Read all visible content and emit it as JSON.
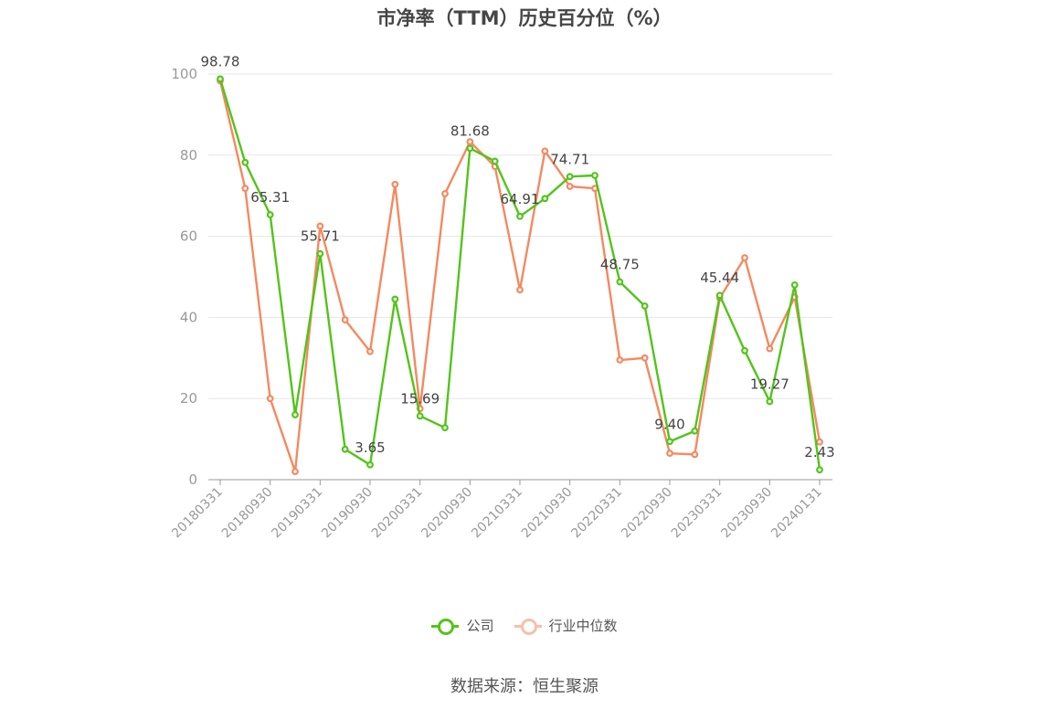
{
  "chart_data": {
    "type": "line",
    "title": "市净率（TTM）历史百分位（%）",
    "x": [
      "20180331",
      "20180630",
      "20180930",
      "20181231",
      "20190331",
      "20190630",
      "20190930",
      "20191231",
      "20200331",
      "20200630",
      "20200930",
      "20201231",
      "20210331",
      "20210630",
      "20210930",
      "20211231",
      "20220331",
      "20220630",
      "20220930",
      "20221231",
      "20230331",
      "20230630",
      "20230930",
      "20231231",
      "20240131"
    ],
    "x_tick_labels": [
      "20180331",
      "20180930",
      "20190331",
      "20190930",
      "20200331",
      "20200930",
      "20210331",
      "20210930",
      "20220331",
      "20220930",
      "20230331",
      "20230930",
      "20240131"
    ],
    "y_ticks": [
      "0",
      "20",
      "40",
      "60",
      "80",
      "100"
    ],
    "ylim": [
      0,
      100
    ],
    "grid": true,
    "legend_position": "bottom-center",
    "series": [
      {
        "name": "公司",
        "color": "#52c41a",
        "values": [
          98.78,
          78.2,
          65.31,
          16.0,
          55.71,
          7.5,
          3.65,
          44.5,
          15.69,
          12.8,
          81.68,
          78.5,
          64.91,
          69.3,
          74.71,
          75.0,
          48.75,
          42.8,
          9.4,
          12.0,
          45.44,
          31.8,
          19.27,
          48.0,
          2.43
        ],
        "labels": [
          "98.78",
          "",
          "65.31",
          "",
          "55.71",
          "",
          "3.65",
          "",
          "15.69",
          "",
          "81.68",
          "",
          "64.91",
          "",
          "74.71",
          "",
          "48.75",
          "",
          "9.40",
          "",
          "45.44",
          "",
          "19.27",
          "",
          "2.43"
        ]
      },
      {
        "name": "行业中位数",
        "color": "#f4895f",
        "values": [
          98.3,
          71.8,
          20.0,
          2.0,
          62.5,
          39.4,
          31.6,
          72.8,
          17.5,
          70.5,
          83.3,
          77.2,
          46.8,
          81.0,
          72.3,
          71.8,
          29.5,
          30.0,
          6.5,
          6.2,
          44.8,
          54.7,
          32.3,
          45.0,
          9.3
        ]
      }
    ]
  },
  "source_text": "数据来源：恒生聚源"
}
